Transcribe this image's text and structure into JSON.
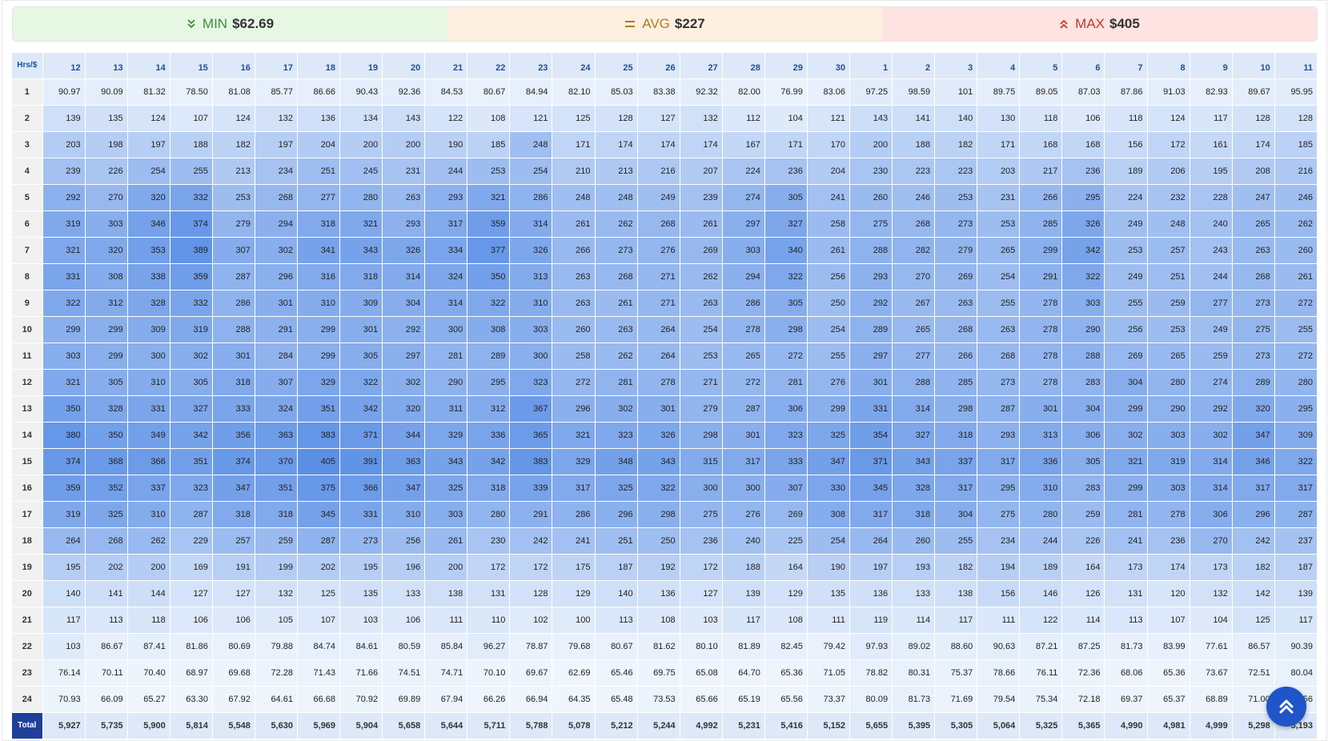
{
  "stats": {
    "min": {
      "label": "MIN",
      "value": "$62.69",
      "icon": "chevron-double-down-icon",
      "color": "#3f8a3a"
    },
    "avg": {
      "label": "AVG",
      "value": "$227",
      "icon": "equals-icon",
      "color": "#b07a20"
    },
    "max": {
      "label": "MAX",
      "value": "$405",
      "icon": "chevron-double-up-icon",
      "color": "#c0392b"
    }
  },
  "table": {
    "corner_label": "Hrs/$",
    "total_label": "Total",
    "columns": [
      "12",
      "13",
      "14",
      "15",
      "16",
      "17",
      "18",
      "19",
      "20",
      "21",
      "22",
      "23",
      "24",
      "25",
      "26",
      "27",
      "28",
      "29",
      "30",
      "1",
      "2",
      "3",
      "4",
      "5",
      "6",
      "7",
      "8",
      "9",
      "10",
      "11"
    ],
    "rows": [
      {
        "label": "1",
        "values": [
          "90.97",
          "90.09",
          "81.32",
          "78.50",
          "81.08",
          "85.77",
          "86.66",
          "90.43",
          "92.36",
          "84.53",
          "80.67",
          "84.94",
          "82.10",
          "85.03",
          "83.38",
          "92.32",
          "82.00",
          "76.99",
          "83.06",
          "97.25",
          "98.59",
          "101",
          "89.75",
          "89.05",
          "87.03",
          "87.86",
          "91.03",
          "82.93",
          "89.67",
          "95.95"
        ]
      },
      {
        "label": "2",
        "values": [
          "139",
          "135",
          "124",
          "107",
          "124",
          "132",
          "136",
          "134",
          "143",
          "122",
          "108",
          "121",
          "125",
          "128",
          "127",
          "132",
          "112",
          "104",
          "121",
          "143",
          "141",
          "140",
          "130",
          "118",
          "106",
          "118",
          "124",
          "117",
          "128",
          "128"
        ]
      },
      {
        "label": "3",
        "values": [
          "203",
          "198",
          "197",
          "188",
          "182",
          "197",
          "204",
          "200",
          "200",
          "190",
          "185",
          "248",
          "171",
          "174",
          "174",
          "174",
          "167",
          "171",
          "170",
          "200",
          "188",
          "182",
          "171",
          "168",
          "168",
          "156",
          "172",
          "161",
          "174",
          "185"
        ]
      },
      {
        "label": "4",
        "values": [
          "239",
          "226",
          "254",
          "255",
          "213",
          "234",
          "251",
          "245",
          "231",
          "244",
          "253",
          "254",
          "210",
          "213",
          "216",
          "207",
          "224",
          "236",
          "204",
          "230",
          "223",
          "223",
          "203",
          "217",
          "236",
          "189",
          "206",
          "195",
          "208",
          "216"
        ]
      },
      {
        "label": "5",
        "values": [
          "292",
          "270",
          "320",
          "332",
          "253",
          "268",
          "277",
          "280",
          "263",
          "293",
          "321",
          "286",
          "248",
          "248",
          "249",
          "239",
          "274",
          "305",
          "241",
          "260",
          "246",
          "253",
          "231",
          "266",
          "295",
          "224",
          "232",
          "228",
          "247",
          "246"
        ]
      },
      {
        "label": "6",
        "values": [
          "319",
          "303",
          "346",
          "374",
          "279",
          "294",
          "318",
          "321",
          "293",
          "317",
          "359",
          "314",
          "261",
          "262",
          "268",
          "261",
          "297",
          "327",
          "258",
          "275",
          "268",
          "273",
          "253",
          "285",
          "326",
          "249",
          "248",
          "240",
          "265",
          "262"
        ]
      },
      {
        "label": "7",
        "values": [
          "321",
          "320",
          "353",
          "389",
          "307",
          "302",
          "341",
          "343",
          "326",
          "334",
          "377",
          "326",
          "266",
          "273",
          "276",
          "269",
          "303",
          "340",
          "261",
          "288",
          "282",
          "279",
          "265",
          "299",
          "342",
          "253",
          "257",
          "243",
          "263",
          "260"
        ]
      },
      {
        "label": "8",
        "values": [
          "331",
          "308",
          "338",
          "359",
          "287",
          "296",
          "316",
          "318",
          "314",
          "324",
          "350",
          "313",
          "263",
          "268",
          "271",
          "262",
          "294",
          "322",
          "256",
          "293",
          "270",
          "269",
          "254",
          "291",
          "322",
          "249",
          "251",
          "244",
          "268",
          "261"
        ]
      },
      {
        "label": "9",
        "values": [
          "322",
          "312",
          "328",
          "332",
          "286",
          "301",
          "310",
          "309",
          "304",
          "314",
          "322",
          "310",
          "263",
          "261",
          "271",
          "263",
          "286",
          "305",
          "250",
          "292",
          "267",
          "263",
          "255",
          "278",
          "303",
          "255",
          "259",
          "277",
          "273",
          "272"
        ]
      },
      {
        "label": "10",
        "values": [
          "299",
          "299",
          "309",
          "319",
          "288",
          "291",
          "299",
          "301",
          "292",
          "300",
          "308",
          "303",
          "260",
          "263",
          "264",
          "254",
          "278",
          "298",
          "254",
          "289",
          "265",
          "268",
          "263",
          "278",
          "290",
          "256",
          "253",
          "249",
          "275",
          "255"
        ]
      },
      {
        "label": "11",
        "values": [
          "303",
          "299",
          "300",
          "302",
          "301",
          "284",
          "299",
          "305",
          "297",
          "281",
          "289",
          "300",
          "258",
          "262",
          "264",
          "253",
          "265",
          "272",
          "255",
          "297",
          "277",
          "266",
          "268",
          "278",
          "288",
          "269",
          "265",
          "259",
          "273",
          "272"
        ]
      },
      {
        "label": "12",
        "values": [
          "321",
          "305",
          "310",
          "305",
          "318",
          "307",
          "329",
          "322",
          "302",
          "290",
          "295",
          "323",
          "272",
          "281",
          "278",
          "271",
          "272",
          "281",
          "276",
          "301",
          "288",
          "285",
          "273",
          "278",
          "283",
          "304",
          "280",
          "274",
          "289",
          "280"
        ]
      },
      {
        "label": "13",
        "values": [
          "350",
          "328",
          "331",
          "327",
          "333",
          "324",
          "351",
          "342",
          "320",
          "311",
          "312",
          "367",
          "296",
          "302",
          "301",
          "279",
          "287",
          "306",
          "299",
          "331",
          "314",
          "298",
          "287",
          "301",
          "304",
          "299",
          "290",
          "292",
          "320",
          "295"
        ]
      },
      {
        "label": "14",
        "values": [
          "380",
          "350",
          "349",
          "342",
          "356",
          "363",
          "383",
          "371",
          "344",
          "329",
          "336",
          "365",
          "321",
          "323",
          "326",
          "298",
          "301",
          "323",
          "325",
          "354",
          "327",
          "318",
          "293",
          "313",
          "306",
          "302",
          "303",
          "302",
          "347",
          "309"
        ]
      },
      {
        "label": "15",
        "values": [
          "374",
          "368",
          "366",
          "351",
          "374",
          "370",
          "405",
          "391",
          "363",
          "343",
          "342",
          "383",
          "329",
          "348",
          "343",
          "315",
          "317",
          "333",
          "347",
          "371",
          "343",
          "337",
          "317",
          "336",
          "305",
          "321",
          "319",
          "314",
          "346",
          "322"
        ]
      },
      {
        "label": "16",
        "values": [
          "359",
          "352",
          "337",
          "323",
          "347",
          "351",
          "375",
          "366",
          "347",
          "325",
          "318",
          "339",
          "317",
          "325",
          "322",
          "300",
          "300",
          "307",
          "330",
          "345",
          "328",
          "317",
          "295",
          "310",
          "283",
          "299",
          "303",
          "314",
          "317",
          "317"
        ]
      },
      {
        "label": "17",
        "values": [
          "319",
          "325",
          "310",
          "287",
          "318",
          "318",
          "345",
          "331",
          "310",
          "303",
          "280",
          "291",
          "286",
          "296",
          "298",
          "275",
          "276",
          "269",
          "308",
          "317",
          "318",
          "304",
          "275",
          "280",
          "259",
          "281",
          "278",
          "306",
          "296",
          "287"
        ]
      },
      {
        "label": "18",
        "values": [
          "264",
          "268",
          "262",
          "229",
          "257",
          "259",
          "287",
          "273",
          "256",
          "261",
          "230",
          "242",
          "241",
          "251",
          "250",
          "236",
          "240",
          "225",
          "254",
          "264",
          "260",
          "255",
          "234",
          "244",
          "226",
          "241",
          "236",
          "270",
          "242",
          "237"
        ]
      },
      {
        "label": "19",
        "values": [
          "195",
          "202",
          "200",
          "169",
          "191",
          "199",
          "202",
          "195",
          "196",
          "200",
          "172",
          "172",
          "175",
          "187",
          "192",
          "172",
          "188",
          "164",
          "190",
          "197",
          "193",
          "182",
          "194",
          "189",
          "164",
          "173",
          "174",
          "173",
          "182",
          "187"
        ]
      },
      {
        "label": "20",
        "values": [
          "140",
          "141",
          "144",
          "127",
          "127",
          "132",
          "125",
          "135",
          "133",
          "138",
          "131",
          "128",
          "129",
          "140",
          "136",
          "127",
          "139",
          "129",
          "135",
          "136",
          "133",
          "138",
          "156",
          "146",
          "126",
          "131",
          "120",
          "132",
          "142",
          "139"
        ]
      },
      {
        "label": "21",
        "values": [
          "117",
          "113",
          "118",
          "106",
          "106",
          "105",
          "107",
          "103",
          "106",
          "111",
          "110",
          "102",
          "100",
          "113",
          "108",
          "103",
          "117",
          "108",
          "111",
          "119",
          "114",
          "117",
          "111",
          "122",
          "114",
          "113",
          "107",
          "104",
          "125",
          "117"
        ]
      },
      {
        "label": "22",
        "values": [
          "103",
          "86.67",
          "87.41",
          "81.86",
          "80.69",
          "79.88",
          "84.74",
          "84.61",
          "80.59",
          "85.84",
          "96.27",
          "78.87",
          "79.68",
          "80.67",
          "81.62",
          "80.10",
          "81.89",
          "82.45",
          "79.42",
          "97.93",
          "89.02",
          "88.60",
          "90.63",
          "87.21",
          "87.25",
          "81.73",
          "83.99",
          "77.61",
          "86.57",
          "90.39"
        ]
      },
      {
        "label": "23",
        "values": [
          "76.14",
          "70.11",
          "70.40",
          "68.97",
          "69.68",
          "72.28",
          "71.43",
          "71.66",
          "74.51",
          "74.71",
          "70.10",
          "69.67",
          "62.69",
          "65.46",
          "69.75",
          "65.08",
          "64.70",
          "65.36",
          "71.05",
          "78.82",
          "80.31",
          "75.37",
          "78.66",
          "76.11",
          "72.36",
          "68.06",
          "65.36",
          "73.67",
          "72.51",
          "80.04"
        ]
      },
      {
        "label": "24",
        "values": [
          "70.93",
          "66.09",
          "65.27",
          "63.30",
          "67.92",
          "64.61",
          "66.68",
          "70.92",
          "69.89",
          "67.94",
          "66.26",
          "66.94",
          "64.35",
          "65.48",
          "73.53",
          "65.66",
          "65.19",
          "65.56",
          "73.37",
          "80.09",
          "81.73",
          "71.69",
          "79.54",
          "75.34",
          "72.18",
          "69.37",
          "65.37",
          "68.89",
          "71.00",
          "79.56"
        ]
      }
    ],
    "totals": [
      "5,927",
      "5,735",
      "5,900",
      "5,814",
      "5,548",
      "5,630",
      "5,969",
      "5,904",
      "5,658",
      "5,644",
      "5,711",
      "5,788",
      "5,078",
      "5,212",
      "5,244",
      "4,992",
      "5,231",
      "5,416",
      "5,152",
      "5,655",
      "5,395",
      "5,305",
      "5,064",
      "5,325",
      "5,365",
      "4,990",
      "4,981",
      "4,999",
      "5,298",
      "5,193"
    ],
    "heat_colors": {
      "low": "#f0f6fd",
      "high": "#5b8fe6"
    }
  },
  "scroll_top_button": {
    "icon": "chevron-double-up-icon",
    "color": "#1f55c8"
  }
}
